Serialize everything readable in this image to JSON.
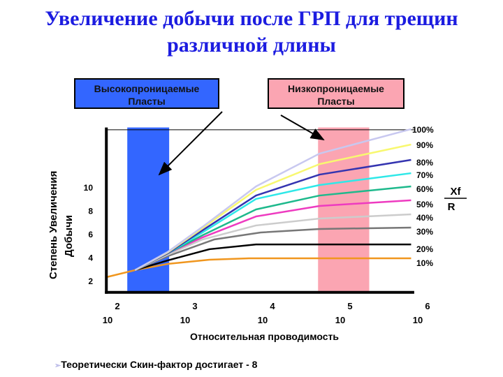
{
  "title": {
    "line1": "Увеличение добычи после ГРП для трещин",
    "line2": "различной длины",
    "color": "#1c1ce0"
  },
  "annotations": {
    "high_perm": {
      "line1": "Высокопроницаемые",
      "line2": "Пласты",
      "color": "#3366ff"
    },
    "low_perm": {
      "line1": "Низкопроницаемые",
      "line2": "Пласты",
      "color": "#fba5b2"
    }
  },
  "note": {
    "bullet": "➢",
    "text": "Теоретически Скин-фактор достигает  - 8"
  },
  "chart_data": {
    "type": "line",
    "xlabel": "Относительная проводимость",
    "ylabel_line1": "Степень Увеличения",
    "ylabel_line2": "Добычи",
    "x_scale": "log",
    "x_ticks": [
      {
        "base": "10",
        "exp": "2",
        "value": 2
      },
      {
        "base": "10",
        "exp": "3",
        "value": 3
      },
      {
        "base": "10",
        "exp": "4",
        "value": 4
      },
      {
        "base": "10",
        "exp": "5",
        "value": 5
      },
      {
        "base": "10",
        "exp": "6",
        "value": 6
      }
    ],
    "y_ticks": [
      "2",
      "4",
      "6",
      "8",
      "10"
    ],
    "xlim_log10": [
      1.93,
      5.9
    ],
    "ylim": [
      1,
      15.1
    ],
    "grid": false,
    "legend_title_num": "Xf",
    "legend_title_den": "R",
    "legend_placement": "right",
    "bands": [
      {
        "name": "high-permeability",
        "x_log10": [
          2.2,
          2.74
        ],
        "color": "#3366ff"
      },
      {
        "name": "low-permeability",
        "x_log10": [
          4.66,
          5.32
        ],
        "color": "#fba5b2"
      }
    ],
    "reference_line_y": 14.9,
    "series": [
      {
        "name": "10%",
        "color": "#f0961e",
        "points": [
          [
            1.93,
            2.3
          ],
          [
            2.3,
            2.9
          ],
          [
            2.72,
            3.43
          ],
          [
            3.26,
            3.79
          ],
          [
            3.77,
            3.91
          ],
          [
            5.86,
            3.91
          ]
        ]
      },
      {
        "name": "20%",
        "color": "#000000",
        "points": [
          [
            2.3,
            2.9
          ],
          [
            2.72,
            3.73
          ],
          [
            3.26,
            4.69
          ],
          [
            3.86,
            5.1
          ],
          [
            5.86,
            5.1
          ]
        ]
      },
      {
        "name": "30%",
        "color": "#777777",
        "points": [
          [
            2.3,
            2.9
          ],
          [
            2.72,
            4.09
          ],
          [
            3.32,
            5.52
          ],
          [
            3.92,
            6.12
          ],
          [
            4.68,
            6.42
          ],
          [
            5.86,
            6.54
          ]
        ]
      },
      {
        "name": "40%",
        "color": "#cccccc",
        "points": [
          [
            2.3,
            2.9
          ],
          [
            2.72,
            4.21
          ],
          [
            3.17,
            5.52
          ],
          [
            3.86,
            6.72
          ],
          [
            4.68,
            7.31
          ],
          [
            5.86,
            7.67
          ]
        ]
      },
      {
        "name": "50%",
        "color": "#ee3bc0",
        "points": [
          [
            2.3,
            2.9
          ],
          [
            2.72,
            4.33
          ],
          [
            3.17,
            5.7
          ],
          [
            3.86,
            7.49
          ],
          [
            4.68,
            8.39
          ],
          [
            5.86,
            8.87
          ]
        ]
      },
      {
        "name": "60%",
        "color": "#1eb98c",
        "points": [
          [
            2.3,
            2.9
          ],
          [
            2.72,
            4.33
          ],
          [
            3.17,
            5.88
          ],
          [
            3.86,
            8.09
          ],
          [
            4.68,
            9.28
          ],
          [
            5.86,
            10.06
          ]
        ]
      },
      {
        "name": "70%",
        "color": "#2ee8e8",
        "points": [
          [
            2.3,
            2.9
          ],
          [
            2.72,
            4.33
          ],
          [
            3.17,
            6.12
          ],
          [
            3.86,
            8.99
          ],
          [
            4.68,
            10.18
          ],
          [
            5.86,
            11.19
          ]
        ]
      },
      {
        "name": "80%",
        "color": "#3434b0",
        "points": [
          [
            2.3,
            2.9
          ],
          [
            2.72,
            4.33
          ],
          [
            3.17,
            6.3
          ],
          [
            3.86,
            9.28
          ],
          [
            4.68,
            11.07
          ],
          [
            5.86,
            12.33
          ]
        ]
      },
      {
        "name": "90%",
        "color": "#f8f870",
        "points": [
          [
            2.3,
            2.9
          ],
          [
            2.72,
            4.4
          ],
          [
            3.17,
            6.48
          ],
          [
            3.86,
            9.76
          ],
          [
            4.68,
            11.97
          ],
          [
            5.86,
            13.64
          ]
        ]
      },
      {
        "name": "100%",
        "color": "#c8c8f0",
        "points": [
          [
            2.3,
            2.9
          ],
          [
            2.72,
            4.45
          ],
          [
            3.17,
            6.6
          ],
          [
            3.86,
            10.06
          ],
          [
            4.68,
            12.87
          ],
          [
            5.86,
            14.96
          ]
        ]
      }
    ]
  }
}
